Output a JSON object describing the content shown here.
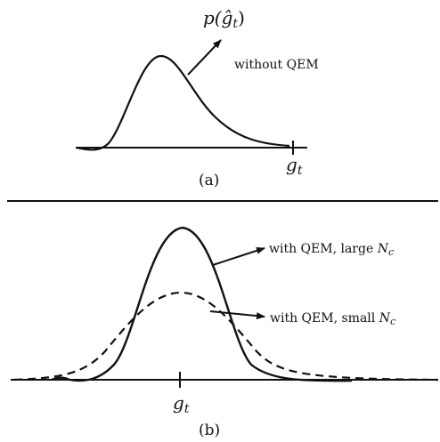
{
  "panel_a": {
    "density_label": {
      "base": "p(",
      "var": "ĝ",
      "sub": "t",
      "close": ")"
    },
    "curve_label": "without QEM",
    "axis_marker": {
      "var": "g",
      "sub": "t"
    },
    "caption": "(a)"
  },
  "panel_b": {
    "solid_label": {
      "text": "with QEM, large ",
      "var": "N",
      "sub": "c"
    },
    "dashed_label": {
      "text": "with QEM, small ",
      "var": "N",
      "sub": "c"
    },
    "axis_marker": {
      "var": "g",
      "sub": "t"
    },
    "caption": "(b)"
  },
  "colors": {
    "ink": "#111111",
    "background": "#ffffff"
  }
}
